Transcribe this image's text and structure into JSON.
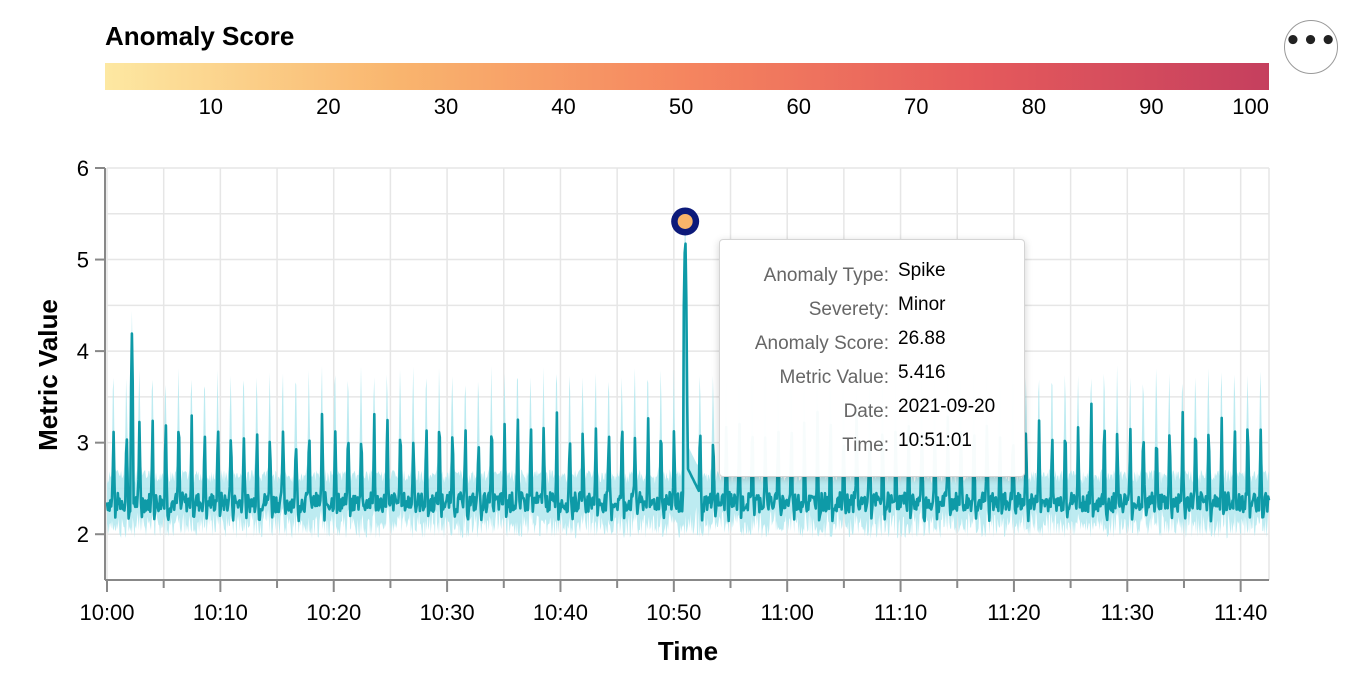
{
  "legend": {
    "title": "Anomaly Score",
    "domain": [
      1,
      100
    ],
    "ticks": [
      "10",
      "20",
      "30",
      "40",
      "50",
      "60",
      "70",
      "80",
      "90",
      "100"
    ],
    "colors": [
      "#fde8a2",
      "#f9b56e",
      "#f5855f",
      "#e55a5c",
      "#c53f5e"
    ]
  },
  "menu": {
    "label": "•••",
    "icon": "ellipsis-icon"
  },
  "chart_data": {
    "type": "line",
    "title": "",
    "xlabel": "Time",
    "ylabel": "Metric Value",
    "xlim_minutes": [
      0,
      102.5
    ],
    "ylim": [
      1.5,
      6
    ],
    "yticks": [
      2,
      3,
      4,
      5,
      6
    ],
    "ytick_labels": [
      "2",
      "3",
      "4",
      "5",
      "6"
    ],
    "xtick_minutes": [
      0,
      10,
      20,
      30,
      40,
      50,
      60,
      70,
      80,
      90,
      100
    ],
    "xtick_labels": [
      "10:00",
      "10:10",
      "10:20",
      "10:30",
      "10:40",
      "10:50",
      "11:00",
      "11:10",
      "11:20",
      "11:30",
      "11:40"
    ],
    "series": [
      {
        "name": "Metric Value",
        "color": "#0e9aa7",
        "baseline": 2.35,
        "cycle_peak": 3.2,
        "cycle_period_minutes": 1.15
      },
      {
        "name": "Expected Range",
        "color": "#b2e8ef",
        "lower": 1.95,
        "upper": 3.5
      }
    ],
    "spikes": [
      {
        "minute": 2.2,
        "value": 4.22
      },
      {
        "minute": 51.0,
        "value": 5.416
      }
    ],
    "anomaly": {
      "minute": 51.0,
      "value": 5.416,
      "score": 26.88,
      "fill": "#f8b46a",
      "stroke": "#0c1a7a"
    },
    "grid": true
  },
  "tooltip": {
    "rows": [
      {
        "key": "Anomaly Type:",
        "value": "Spike"
      },
      {
        "key": "Severety:",
        "value": "Minor"
      },
      {
        "key": "Anomaly Score:",
        "value": "26.88"
      },
      {
        "key": "Metric Value:",
        "value": "5.416"
      },
      {
        "key": "Date:",
        "value": "2021-09-20"
      },
      {
        "key": "Time:",
        "value": "10:51:01"
      }
    ]
  }
}
